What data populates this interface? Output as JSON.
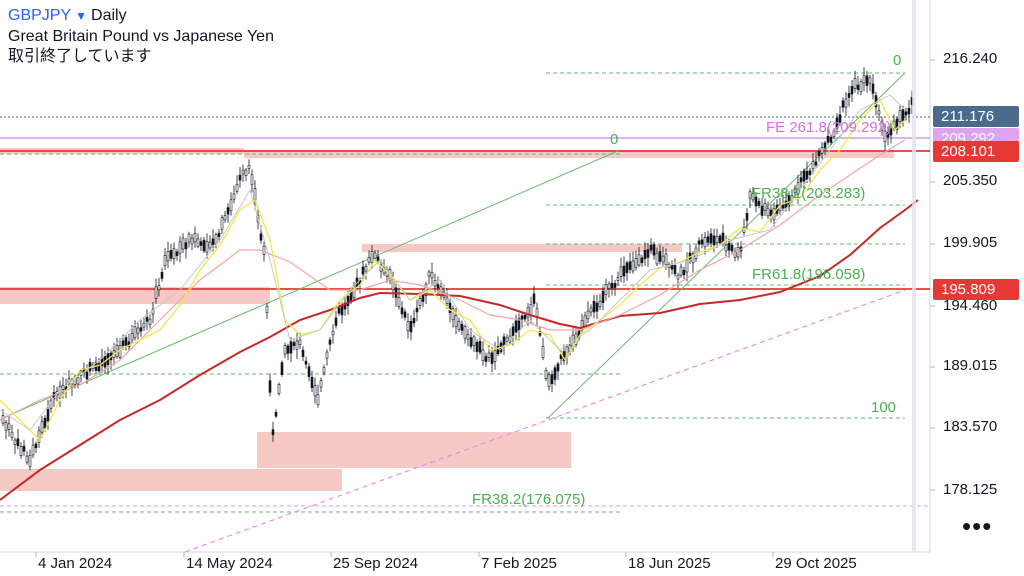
{
  "header": {
    "symbol": "GBPJPY",
    "timeframe": "Daily",
    "description": "Great Britain Pound vs Japanese Yen",
    "status": "取引終了しています"
  },
  "price_axis": [
    "216.240",
    "205.350",
    "199.905",
    "194.460",
    "189.015",
    "183.570",
    "178.125"
  ],
  "badges": {
    "current": "211.176",
    "fe_level": "209.292",
    "resistance": "208.101",
    "support": "195.809"
  },
  "time_axis": [
    "4 Jan 2024",
    "14 May 2024",
    "25 Sep 2024",
    "7 Feb 2025",
    "18 Jun 2025",
    "29 Oct 2025"
  ],
  "fib_labels": {
    "top_zero": "0",
    "mid_zero": "0",
    "fe": "FE 261.8(209.292)",
    "fr382_upper": "FR38.2(203.283)",
    "fr618": "FR61.8(196.058)",
    "hundred": "100",
    "fr382_lower": "FR38.2(176.075)"
  },
  "colors": {
    "symbol": "#2962ff",
    "current_badge": "#4a6b8c",
    "fe_badge": "#e0a3ee",
    "red_badge": "#e53935",
    "fib_green": "#4caf50",
    "zone_fill": "#f5c0bd",
    "ma_red": "#c62828",
    "ma_yellow": "#f2e64a",
    "ma_pink": "#f2a5a5"
  },
  "more_icon": "•••"
}
